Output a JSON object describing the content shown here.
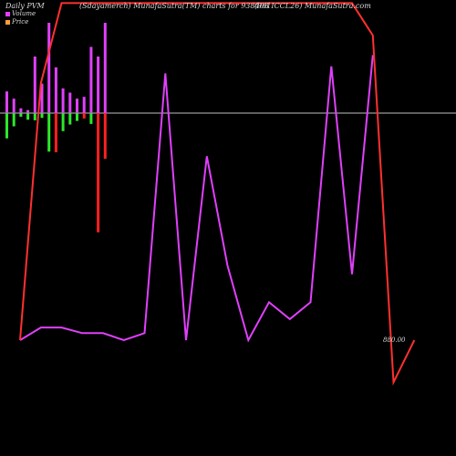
{
  "header": {
    "left": "Daily PVM",
    "center": "(Sdayamerch) MunafaSutra(TM) charts for 938408",
    "right": "(961ICCL26) MunafaSutra.com"
  },
  "legend": {
    "volume": "Volume",
    "price": "Price"
  },
  "colors": {
    "background": "#000000",
    "volume_up": "#e040fb",
    "volume_down": "#ff2020",
    "momentum_up": "#2be82b",
    "momentum_down": "#ff2020",
    "price_line": "#ff3030",
    "pvm_line": "#e040fb",
    "zero_line": "#bfbfbf",
    "text": "#d8d8d8"
  },
  "chart_data": {
    "type": "line",
    "price_label": "880.00",
    "bars": [
      {
        "volume": 3.6,
        "momentum": -4.2,
        "vcolor": "volume_up",
        "mcolor": "momentum_up"
      },
      {
        "volume": 2.4,
        "momentum": -2.2,
        "vcolor": "volume_up",
        "mcolor": "momentum_up"
      },
      {
        "volume": 0.8,
        "momentum": -0.6,
        "vcolor": "volume_up",
        "mcolor": "momentum_up"
      },
      {
        "volume": 0.5,
        "momentum": -1.1,
        "vcolor": "volume_up",
        "mcolor": "momentum_up"
      },
      {
        "volume": 9.4,
        "momentum": -1.2,
        "vcolor": "volume_up",
        "mcolor": "momentum_up"
      },
      {
        "volume": 4.9,
        "momentum": -0.8,
        "vcolor": "volume_up",
        "mcolor": "momentum_up"
      },
      {
        "volume": 15.0,
        "momentum": -6.4,
        "vcolor": "volume_up",
        "mcolor": "momentum_up"
      },
      {
        "volume": 7.6,
        "momentum": -6.5,
        "vcolor": "volume_up",
        "mcolor": "momentum_down"
      },
      {
        "volume": 4.1,
        "momentum": -3.0,
        "vcolor": "volume_up",
        "mcolor": "momentum_up"
      },
      {
        "volume": 3.4,
        "momentum": -1.9,
        "vcolor": "volume_up",
        "mcolor": "momentum_up"
      },
      {
        "volume": 2.4,
        "momentum": -1.3,
        "vcolor": "volume_up",
        "mcolor": "momentum_up"
      },
      {
        "volume": 2.7,
        "momentum": -0.9,
        "vcolor": "volume_up",
        "mcolor": "momentum_down"
      },
      {
        "volume": 11.0,
        "momentum": -1.8,
        "vcolor": "volume_up",
        "mcolor": "momentum_up"
      },
      {
        "volume": 9.4,
        "momentum": -19.8,
        "vcolor": "volume_up",
        "mcolor": "momentum_down"
      },
      {
        "volume": 15.0,
        "momentum": -7.6,
        "vcolor": "volume_up",
        "mcolor": "momentum_down"
      }
    ],
    "price_line": [
      {
        "i": 0,
        "price": 880
      },
      {
        "i": 1,
        "price": 1063
      },
      {
        "i": 2,
        "price": 1120
      },
      {
        "i": 3,
        "price": 1120
      },
      {
        "i": 4,
        "price": 1120
      },
      {
        "i": 5,
        "price": 1120
      },
      {
        "i": 6,
        "price": 1120
      },
      {
        "i": 7,
        "price": 1120
      },
      {
        "i": 8,
        "price": 1120
      },
      {
        "i": 9,
        "price": 1120
      },
      {
        "i": 10,
        "price": 1120
      },
      {
        "i": 11,
        "price": 1120
      },
      {
        "i": 12,
        "price": 1120
      },
      {
        "i": 13,
        "price": 1120
      },
      {
        "i": 14,
        "price": 1120
      },
      {
        "i": 15,
        "price": 1120
      },
      {
        "i": 16,
        "price": 1120
      },
      {
        "i": 17,
        "price": 1097
      },
      {
        "i": 18,
        "price": 850
      },
      {
        "i": 19,
        "price": 880
      }
    ],
    "pvm_line": [
      {
        "i": 0,
        "pvm": 880
      },
      {
        "i": 1,
        "pvm": 889
      },
      {
        "i": 2,
        "pvm": 889
      },
      {
        "i": 3,
        "pvm": 885
      },
      {
        "i": 4,
        "pvm": 885
      },
      {
        "i": 5,
        "pvm": 880
      },
      {
        "i": 6,
        "pvm": 885
      },
      {
        "i": 7,
        "pvm": 1070
      },
      {
        "i": 8,
        "pvm": 880
      },
      {
        "i": 9,
        "pvm": 1011
      },
      {
        "i": 10,
        "pvm": 933
      },
      {
        "i": 11,
        "pvm": 880
      },
      {
        "i": 12,
        "pvm": 907
      },
      {
        "i": 13,
        "pvm": 895
      },
      {
        "i": 14,
        "pvm": 907
      },
      {
        "i": 15,
        "pvm": 1075
      },
      {
        "i": 16,
        "pvm": 927
      },
      {
        "i": 17,
        "pvm": 1083
      }
    ]
  }
}
